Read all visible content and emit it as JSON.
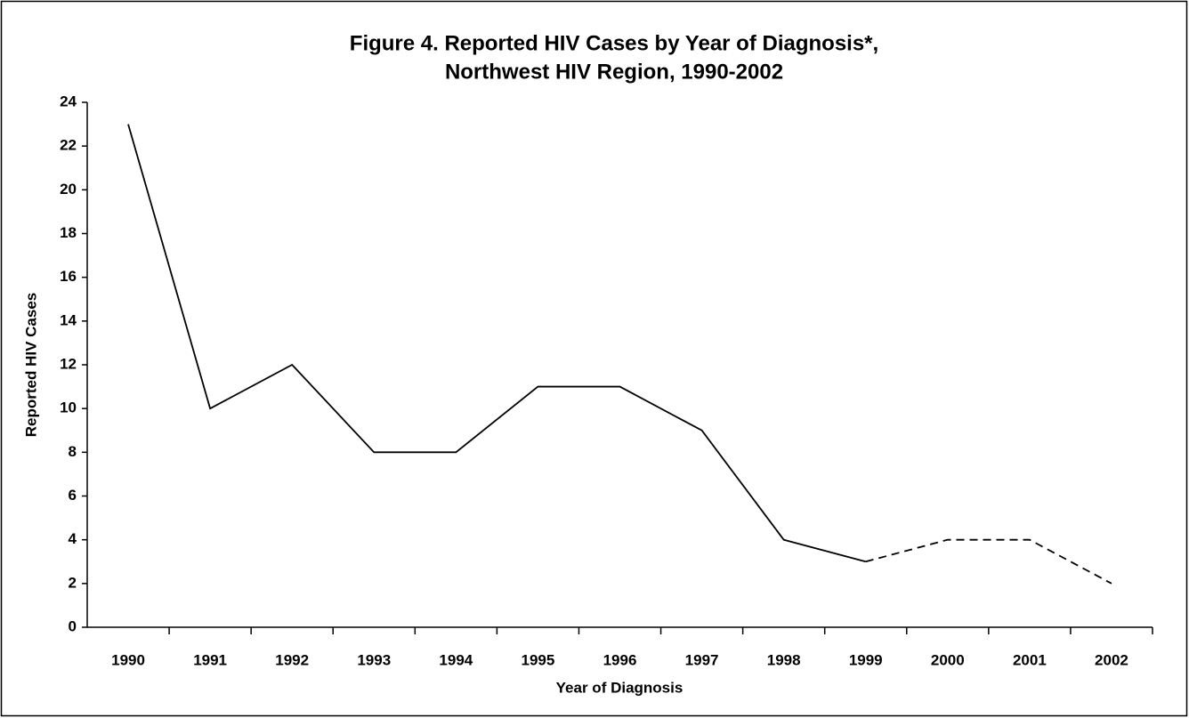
{
  "chart_data": {
    "type": "line",
    "title": [
      "Figure 4.  Reported HIV Cases by Year of Diagnosis*,",
      "Northwest HIV Region, 1990-2002"
    ],
    "x_label": "Year of Diagnosis",
    "y_label": "Reported HIV Cases",
    "categories": [
      "1990",
      "1991",
      "1992",
      "1993",
      "1994",
      "1995",
      "1996",
      "1997",
      "1998",
      "1999",
      "2000",
      "2001",
      "2002"
    ],
    "values": [
      23,
      10,
      12,
      8,
      8,
      11,
      11,
      9,
      4,
      3,
      4,
      4,
      2
    ],
    "segment_styles": [
      "solid",
      "solid",
      "solid",
      "solid",
      "solid",
      "solid",
      "solid",
      "solid",
      "solid",
      "dashed",
      "dashed",
      "dashed"
    ],
    "color": "#000000",
    "ylim": [
      0,
      24
    ],
    "yticks": [
      0,
      2,
      4,
      6,
      8,
      10,
      12,
      14,
      16,
      18,
      20,
      22,
      24
    ],
    "grid": false
  }
}
